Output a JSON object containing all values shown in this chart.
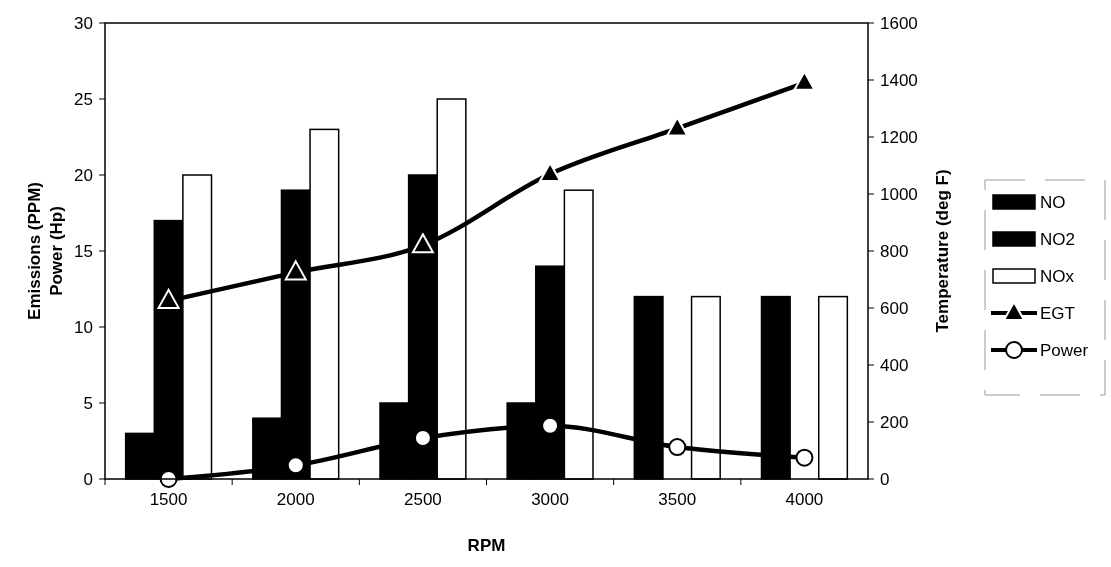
{
  "chart_data": {
    "type": "bar",
    "xlabel": "RPM",
    "ylabel": "Emissions (PPM)\nPower (Hp)",
    "y2label": "Temperature (deg F)",
    "categories": [
      "1500",
      "2000",
      "2500",
      "3000",
      "3500",
      "4000"
    ],
    "series": [
      {
        "name": "NO",
        "color": "#000000",
        "values": [
          3,
          4,
          5,
          5,
          12,
          12
        ]
      },
      {
        "name": "NO2",
        "color": "#000000",
        "values": [
          17,
          19,
          20,
          14,
          null,
          null
        ]
      },
      {
        "name": "NOx",
        "color": "#ffffff",
        "values": [
          20,
          23,
          25,
          19,
          12,
          12
        ]
      },
      {
        "name": "EGT",
        "type": "line",
        "axis": "y2",
        "marker": "triangle",
        "color": "#000000",
        "values": [
          625,
          725,
          820,
          1070,
          1230,
          1390
        ]
      },
      {
        "name": "Power",
        "type": "line",
        "marker": "circle",
        "color": "#000000",
        "values": [
          0,
          0.9,
          2.7,
          3.5,
          2.1,
          1.4
        ]
      }
    ],
    "ylim": [
      0,
      30
    ],
    "yticks": [
      0,
      5,
      10,
      15,
      20,
      25,
      30
    ],
    "y2lim": [
      0,
      1600
    ],
    "y2ticks": [
      0,
      200,
      400,
      600,
      800,
      1000,
      1200,
      1400,
      1600
    ],
    "grid": false,
    "legend": "right"
  }
}
